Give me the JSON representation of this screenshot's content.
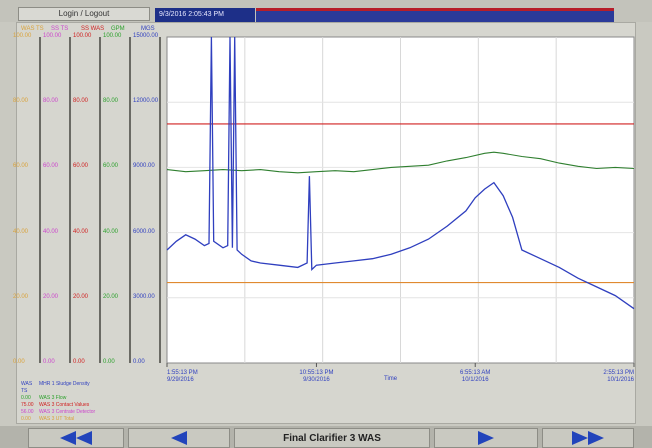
{
  "header": {
    "login_label": "Login / Logout",
    "timestamp": "9/3/2016  2:05:43 PM"
  },
  "colors": {
    "was_ts": "#d9a23a",
    "ss_ts": "#cc44cc",
    "ss_was": "#d02020",
    "gph": "#2aa02a",
    "sludge": "#2f3fbf",
    "red_limit": "#d02020",
    "orange_limit": "#e08a30",
    "green_trace": "#2f7f2f"
  },
  "axes": [
    {
      "key": "was_ts",
      "header": "WAS TS",
      "ticks": [
        "100.00",
        "80.00",
        "60.00",
        "40.00",
        "20.00",
        "0.00"
      ]
    },
    {
      "key": "ss_ts",
      "header": "SS TS",
      "ticks": [
        "100.00",
        "80.00",
        "60.00",
        "40.00",
        "20.00",
        "0.00"
      ]
    },
    {
      "key": "ss_was",
      "header": "SS WAS",
      "ticks": [
        "100.00",
        "80.00",
        "60.00",
        "40.00",
        "20.00",
        "0.00"
      ]
    },
    {
      "key": "gph",
      "header": "GPM",
      "ticks": [
        "100.00",
        "80.00",
        "60.00",
        "40.00",
        "20.00",
        "0.00"
      ]
    },
    {
      "key": "sludge",
      "header": "MGS",
      "ticks": [
        "15000.00",
        "12000.00",
        "9000.00",
        "6000.00",
        "3000.00",
        "0.00"
      ]
    }
  ],
  "time_axis": {
    "label": "Time",
    "ticks": [
      {
        "time": "1:55:13 PM",
        "date": "9/29/2016"
      },
      {
        "time": "10:55:13 PM",
        "date": "9/30/2016"
      },
      {
        "time": "6:55:13 AM",
        "date": "10/1/2016"
      },
      {
        "time": "2:55:13 PM",
        "date": "10/1/2016"
      }
    ]
  },
  "legend": [
    {
      "value": "WAS TS",
      "name": "MHR 1 Sludge Density",
      "color": "#2f3fbf"
    },
    {
      "value": "0.00",
      "name": "WAS 3 Flow",
      "color": "#2aa02a"
    },
    {
      "value": "75.00",
      "name": "WAS 3 Contact Values",
      "color": "#d02020"
    },
    {
      "value": "56.00",
      "name": "WAS 3 Centrate Detector",
      "color": "#cc44cc"
    },
    {
      "value": "0.00",
      "name": "WAS 3 UT Total",
      "color": "#d9a23a"
    }
  ],
  "chart_data": {
    "type": "line",
    "xlabel": "Time",
    "ylim": [
      0,
      15000
    ],
    "reference_lines": [
      {
        "name": "upper limit",
        "value": 11000,
        "color": "#d02020"
      },
      {
        "name": "lower limit",
        "value": 3700,
        "color": "#e08a30"
      }
    ],
    "series": [
      {
        "color": "#2f7f2f",
        "x": [
          0.0,
          0.04,
          0.08,
          0.12,
          0.16,
          0.2,
          0.24,
          0.28,
          0.32,
          0.36,
          0.4,
          0.44,
          0.48,
          0.52,
          0.56,
          0.6,
          0.64,
          0.68,
          0.7,
          0.72,
          0.76,
          0.8,
          0.84,
          0.88,
          0.92,
          0.96,
          1.0
        ],
        "values": [
          8900,
          8800,
          8850,
          8900,
          8850,
          8900,
          8800,
          8750,
          8800,
          8850,
          8800,
          8900,
          9000,
          9050,
          9100,
          9300,
          9450,
          9650,
          9700,
          9650,
          9500,
          9400,
          9200,
          9050,
          8950,
          9000,
          8950
        ]
      },
      {
        "color": "#2f3fbf",
        "x": [
          0.0,
          0.02,
          0.04,
          0.06,
          0.08,
          0.09,
          0.095,
          0.1,
          0.12,
          0.13,
          0.135,
          0.14,
          0.145,
          0.15,
          0.16,
          0.18,
          0.2,
          0.24,
          0.28,
          0.3,
          0.305,
          0.31,
          0.32,
          0.36,
          0.4,
          0.44,
          0.48,
          0.52,
          0.56,
          0.6,
          0.64,
          0.66,
          0.68,
          0.7,
          0.72,
          0.74,
          0.76,
          0.8,
          0.84,
          0.88,
          0.92,
          0.96,
          1.0
        ],
        "values": [
          5200,
          5600,
          5900,
          5700,
          5400,
          5500,
          15000,
          5600,
          5300,
          5400,
          15000,
          5300,
          15000,
          5200,
          5000,
          4700,
          4600,
          4500,
          4400,
          4600,
          8600,
          4300,
          4500,
          4600,
          4700,
          4800,
          5000,
          5300,
          5700,
          6300,
          7000,
          7600,
          8000,
          8300,
          7700,
          6700,
          5200,
          4800,
          4400,
          3900,
          3500,
          3100,
          2500
        ]
      }
    ]
  },
  "footer": {
    "title": "Final Clarifier 3 WAS"
  }
}
